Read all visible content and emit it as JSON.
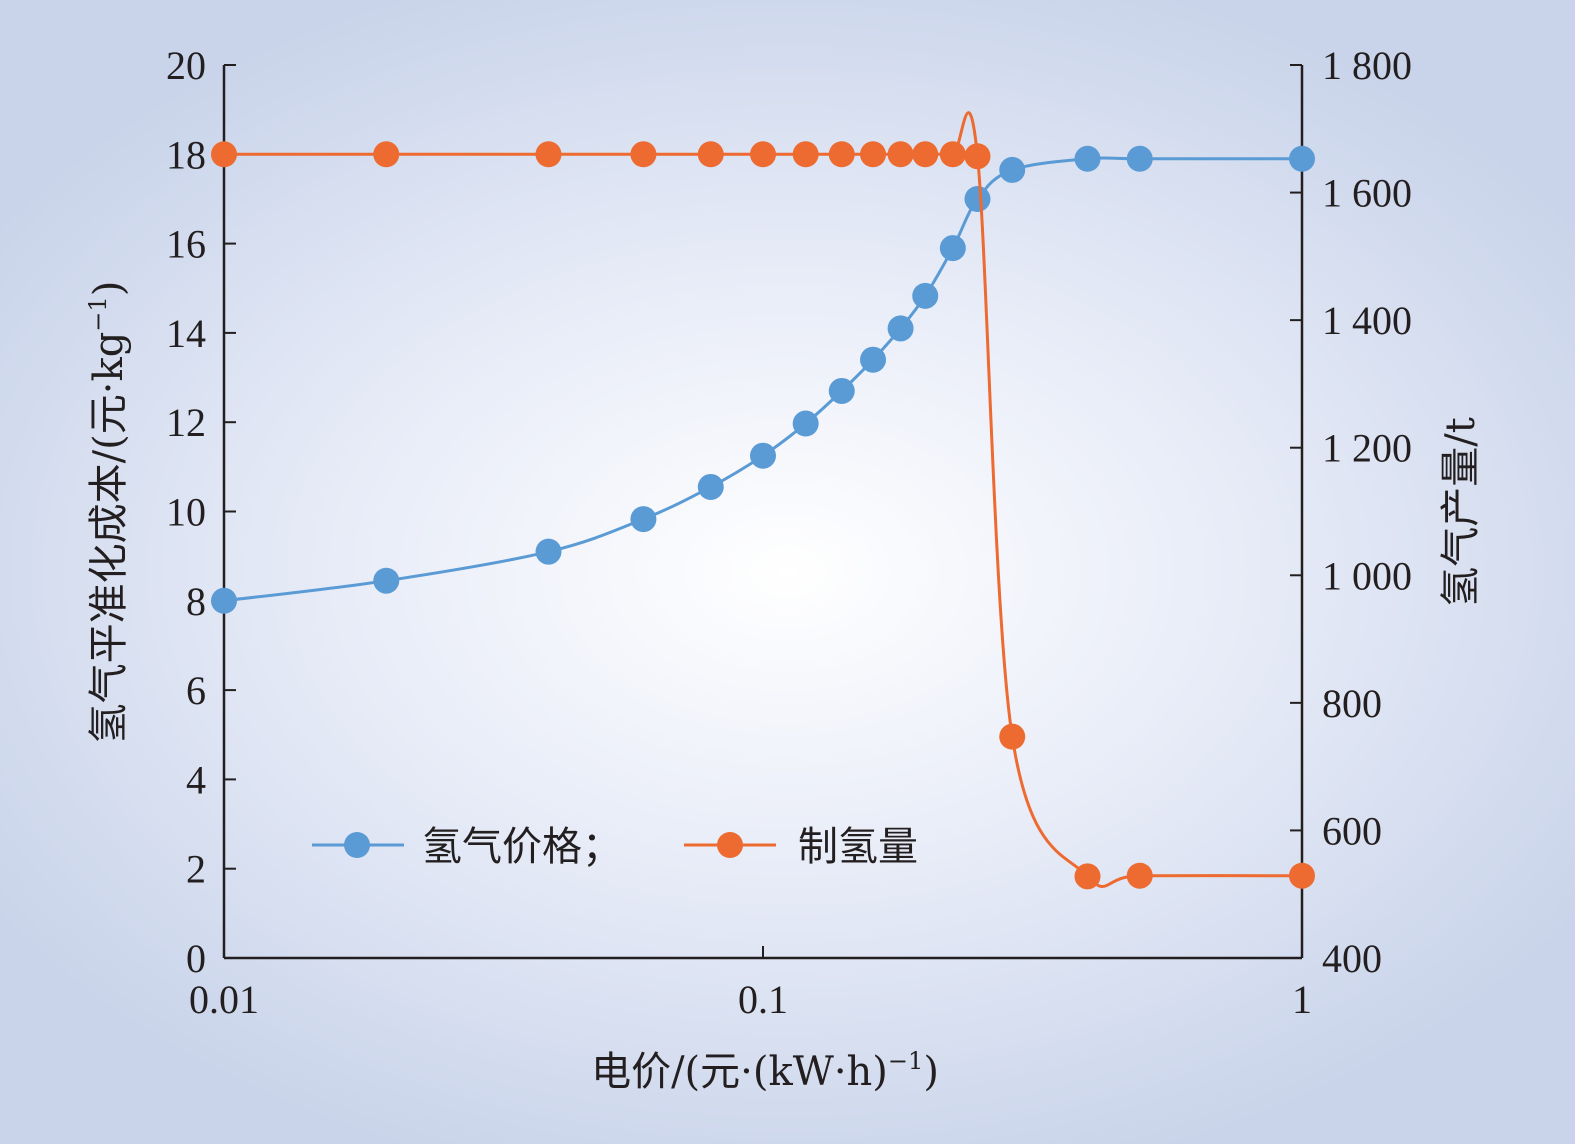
{
  "chart_data": {
    "type": "line",
    "x_scale": "log",
    "xlabel_prefix": "电价/(元·(kW·h)",
    "xlabel_sup": "−1",
    "xlabel_suffix": ")",
    "ylabel_left_prefix": "氢气平准化成本/(元·kg",
    "ylabel_left_sup": "−1",
    "ylabel_left_suffix": ")",
    "ylabel_right": "氢气产量/t",
    "xlim": [
      0.01,
      1
    ],
    "ylim_left": [
      0,
      20
    ],
    "ylim_right": [
      400,
      1800
    ],
    "x_ticks": [
      "0.01",
      "0.1",
      "1"
    ],
    "x_tick_values": [
      0.01,
      0.1,
      1
    ],
    "y_left_ticks": [
      "0",
      "2",
      "4",
      "6",
      "8",
      "10",
      "12",
      "14",
      "16",
      "18",
      "20"
    ],
    "y_right_ticks": [
      "400",
      "600",
      "800",
      "1 000",
      "1 200",
      "1 400",
      "1 600",
      "1 800"
    ],
    "y_right_tick_values": [
      400,
      600,
      800,
      1000,
      1200,
      1400,
      1600,
      1800
    ],
    "grid": false,
    "legend_position": "bottom-left",
    "series": [
      {
        "name": "氢气价格；",
        "axis": "left",
        "color": "#5b9bd5",
        "x": [
          0.01,
          0.02,
          0.04,
          0.06,
          0.08,
          0.1,
          0.12,
          0.14,
          0.16,
          0.18,
          0.2,
          0.225,
          0.25,
          0.29,
          0.4,
          0.5,
          1.0
        ],
        "values": [
          8.0,
          8.45,
          9.1,
          9.83,
          10.55,
          11.25,
          11.97,
          12.7,
          13.4,
          14.1,
          14.83,
          15.9,
          17.0,
          17.65,
          17.9,
          17.9,
          17.9
        ]
      },
      {
        "name": "制氢量",
        "axis": "right",
        "color": "#ed6a30",
        "x": [
          0.01,
          0.02,
          0.04,
          0.06,
          0.08,
          0.1,
          0.12,
          0.14,
          0.16,
          0.18,
          0.2,
          0.225,
          0.25,
          0.29,
          0.4,
          0.5,
          1.0
        ],
        "values": [
          1660,
          1660,
          1660,
          1660,
          1660,
          1660,
          1660,
          1660,
          1660,
          1660,
          1660,
          1660,
          1657,
          747,
          528,
          529,
          529
        ]
      }
    ]
  }
}
